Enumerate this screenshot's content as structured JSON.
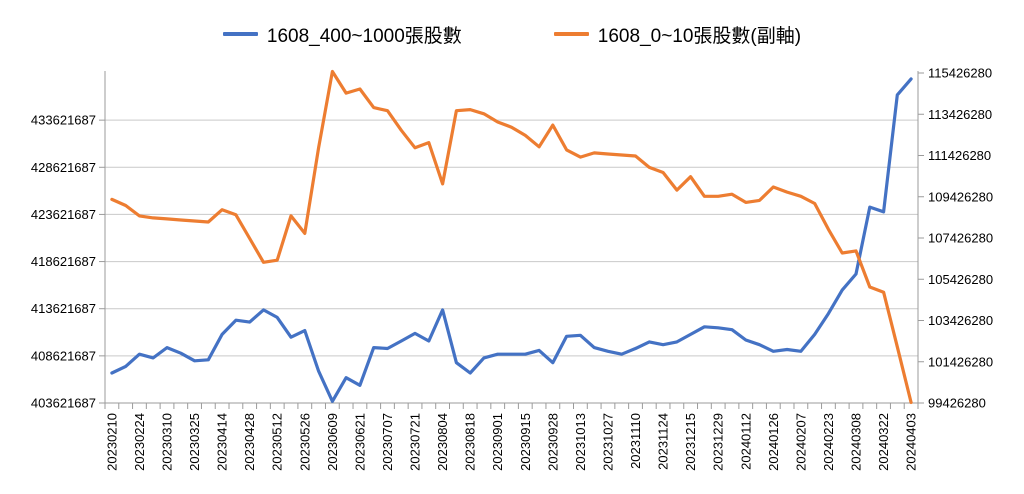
{
  "chart_data": {
    "type": "line",
    "title": "",
    "legend_position": "top",
    "grid": true,
    "legend": [
      {
        "name": "1608_400~1000張股數",
        "color": "#4472C4",
        "axis": "left"
      },
      {
        "name": "1608_0~10張股數(副軸)",
        "color": "#ED7D31",
        "axis": "right"
      }
    ],
    "x_labels": [
      "20230210",
      "20230224",
      "20230310",
      "20230325",
      "20230414",
      "20230428",
      "20230512",
      "20230526",
      "20230609",
      "20230621",
      "20230707",
      "20230721",
      "20230804",
      "20230818",
      "20230901",
      "20230915",
      "20230928",
      "20231013",
      "20231027",
      "20231110",
      "20231124",
      "20231215",
      "20231229",
      "20240112",
      "20240126",
      "20240207",
      "20240223",
      "20240308",
      "20240322",
      "20240403"
    ],
    "label_every": 2,
    "left_axis": {
      "min": 403621687,
      "max": 438621687,
      "tick_step": 5000000,
      "ticks": [
        "403621687",
        "408621687",
        "413621687",
        "418621687",
        "423621687",
        "428621687",
        "433621687"
      ]
    },
    "right_axis": {
      "min": 99426280,
      "max": 115426280,
      "tick_step": 2000000,
      "ticks": [
        "99426280",
        "101426280",
        "103426280",
        "105426280",
        "107426280",
        "109426280",
        "111426280",
        "113426280",
        "115426280"
      ]
    },
    "series": [
      {
        "name": "1608_400~1000張股數",
        "axis": "left",
        "color": "#4472C4",
        "values": [
          406800000,
          407500000,
          408800000,
          408400000,
          409500000,
          408900000,
          408100000,
          408200000,
          410900000,
          412400000,
          412200000,
          413500000,
          412700000,
          410600000,
          411300000,
          407000000,
          403800000,
          406300000,
          405500000,
          409500000,
          409400000,
          410200000,
          411000000,
          410200000,
          413500000,
          407900000,
          406800000,
          408400000,
          408800000,
          408800000,
          408800000,
          409200000,
          407900000,
          410700000,
          410800000,
          409500000,
          409100000,
          408800000,
          409400000,
          410100000,
          409800000,
          410100000,
          410900000,
          411700000,
          411600000,
          411400000,
          410300000,
          409800000,
          409100000,
          409300000,
          409100000,
          410900000,
          413100000,
          415600000,
          417300000,
          424400000,
          423900000,
          436300000,
          438000000
        ]
      },
      {
        "name": "1608_0~10張股數(副軸)",
        "axis": "right",
        "color": "#ED7D31",
        "values": [
          109300000,
          109000000,
          108500000,
          108400000,
          108350000,
          108300000,
          108250000,
          108200000,
          108800000,
          108550000,
          107400000,
          106250000,
          106350000,
          108500000,
          107650000,
          111800000,
          115500000,
          114450000,
          114650000,
          113750000,
          113600000,
          112650000,
          111800000,
          112050000,
          110050000,
          113600000,
          113650000,
          113450000,
          113050000,
          112800000,
          112400000,
          111850000,
          112900000,
          111700000,
          111350000,
          111550000,
          111500000,
          111450000,
          111400000,
          110850000,
          110600000,
          109750000,
          110400000,
          109450000,
          109450000,
          109550000,
          109150000,
          109250000,
          109900000,
          109650000,
          109450000,
          109100000,
          107850000,
          106700000,
          106800000,
          105050000,
          104800000,
          102150000,
          99450000
        ]
      }
    ],
    "colors": {
      "gridline": "#c9c9c9",
      "axis_line": "#9b9b9b",
      "tick_label": "#000000"
    }
  }
}
